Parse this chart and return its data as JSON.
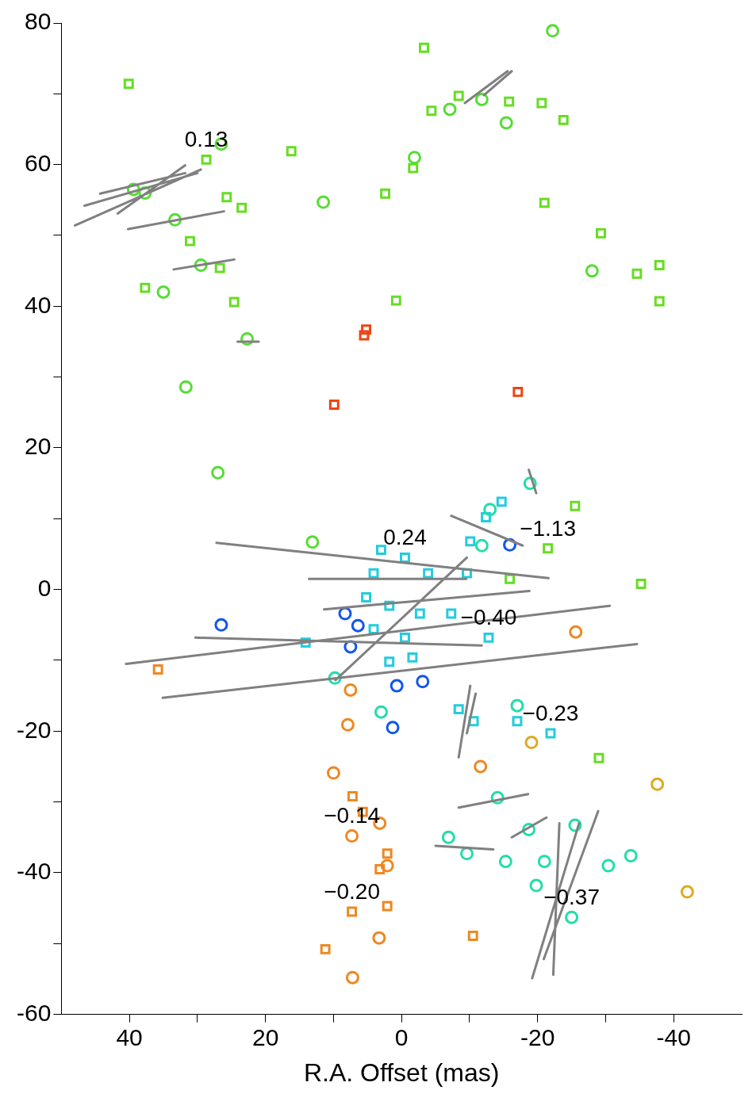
{
  "chart_data": {
    "type": "scatter",
    "xlabel": "R.A. Offset (mas)",
    "xlim": [
      50,
      -50
    ],
    "ylim": [
      -60,
      80
    ],
    "xticks": [
      40,
      {
        "value": 30,
        "label": null
      },
      20,
      {
        "value": 10,
        "label": null
      },
      0,
      {
        "value": -10,
        "label": null
      },
      -20,
      {
        "value": -30,
        "label": null
      },
      -40
    ],
    "yticks": [
      -60,
      {
        "value": -50,
        "label": null
      },
      -40,
      {
        "value": -30,
        "label": null
      },
      -20,
      {
        "value": -10,
        "label": null
      },
      0,
      {
        "value": 10,
        "label": null
      },
      20,
      {
        "value": 30,
        "label": null
      },
      40,
      {
        "value": 50,
        "label": null
      },
      60,
      {
        "value": 70,
        "label": null
      },
      80
    ],
    "grid": false,
    "legend": false,
    "series": [
      {
        "type": "line",
        "color": "#808080",
        "line_style": "solid",
        "marker": "none",
        "x": [
          48,
          29.5,
          null,
          46.6,
          30,
          null,
          44.3,
          31.8,
          null,
          41.7,
          31.8,
          null,
          40.2,
          26.1,
          null,
          33.5,
          24.6,
          null,
          -9.3,
          -15.6,
          null,
          -12.1,
          -16.2,
          null,
          27.2,
          -21.6,
          null,
          13.6,
          -9.5,
          null,
          40.5,
          -30.6,
          null,
          35.1,
          -34.6,
          null,
          30.3,
          -11.8,
          null,
          11.4,
          -18.8,
          null,
          9.7,
          -9.6,
          null,
          -7.3,
          -17.8,
          null,
          -8.4,
          -10.1,
          null,
          -9.6,
          -10.9,
          null,
          -8.4,
          -18.6,
          null,
          -5.0,
          -13.5,
          null,
          -19.2,
          -26.1,
          null,
          -22.3,
          -23.2,
          null,
          -20.9,
          -28.9,
          null,
          -16.2,
          -21.3,
          null,
          24.1,
          21.0,
          null,
          -18.7,
          -19.8
        ],
        "values": [
          51.4,
          59.3,
          null,
          54.2,
          58.8,
          null,
          55.9,
          58.8,
          null,
          53.1,
          59.9,
          null,
          50.9,
          53.4,
          null,
          45.2,
          46.6,
          null,
          68.7,
          73.2,
          null,
          69.8,
          73.2,
          null,
          6.6,
          1.6,
          null,
          1.5,
          1.5,
          null,
          -10.5,
          -2.3,
          null,
          -15.3,
          -7.7,
          null,
          -6.8,
          -7.9,
          null,
          -2.8,
          -0.2,
          null,
          -12.8,
          4.5,
          null,
          10.4,
          6.2,
          null,
          -23.7,
          -13.6,
          null,
          -20.3,
          -14.7,
          null,
          -30.8,
          -28.9,
          null,
          -36.2,
          -36.7,
          null,
          -54.9,
          -33.0,
          null,
          -54.4,
          -33.0,
          null,
          -52.2,
          -31.3,
          null,
          -35.0,
          -32.2,
          null,
          35.0,
          35.0,
          null,
          16.9,
          13.6
        ]
      },
      {
        "marker": "circle",
        "color": "#55dd33",
        "x": [
          -22.2,
          26.5,
          33.3,
          29.5,
          35,
          22.7,
          31.7,
          27,
          13.1,
          11.5,
          -7.1,
          -11.8,
          -15.4,
          -1.9,
          -28,
          39.4,
          37.7
        ],
        "values": [
          78.9,
          62.9,
          52.2,
          45.8,
          42,
          35.4,
          28.6,
          16.5,
          6.7,
          54.7,
          67.8,
          69.2,
          65.9,
          61,
          45,
          56.5,
          56
        ]
      },
      {
        "marker": "square",
        "color": "#66dd22",
        "x": [
          40.1,
          -3.3,
          16.2,
          28.7,
          25.7,
          23.5,
          31.1,
          26.7,
          24.6,
          37.7,
          2.4,
          -1.7,
          -4.4,
          -8.4,
          -15.8,
          -20.6,
          -23.8,
          -21,
          -29.3,
          -34.6,
          -37.9,
          -37.9,
          0.8,
          -25.5,
          -21.5,
          -35.2,
          -29,
          -15.9
        ],
        "values": [
          71.4,
          76.5,
          61.9,
          60.7,
          55.4,
          53.9,
          49.2,
          45.4,
          40.6,
          42.6,
          55.9,
          59.5,
          67.6,
          69.7,
          68.9,
          68.7,
          66.3,
          54.6,
          50.3,
          44.6,
          45.8,
          40.7,
          40.8,
          11.8,
          5.8,
          0.8,
          -23.8,
          1.5
        ]
      },
      {
        "marker": "circle",
        "color": "#22ddaa",
        "x": [
          -18.9,
          -13,
          -11.8,
          9.8,
          3,
          -17,
          -14.1,
          -6.9,
          -9.6,
          -18.7,
          -25.5,
          -21,
          -25,
          -30.4,
          -33.7,
          -19.8,
          -15.3
        ],
        "values": [
          15,
          11.3,
          6.2,
          -12.5,
          -17.3,
          -16.4,
          -29.4,
          -35,
          -37.3,
          -33.9,
          -33.3,
          -38.4,
          -46.3,
          -39,
          -37.6,
          -41.8,
          -38.4
        ]
      },
      {
        "marker": "square",
        "color": "#22ccdd",
        "x": [
          3,
          -0.5,
          4.1,
          -3.9,
          5.2,
          1.8,
          -2.7,
          4.1,
          -0.5,
          1.8,
          -1.6,
          -7.3,
          -9.6,
          -10.1,
          -12.4,
          -14.7,
          -8.4,
          -10.6,
          -12.8,
          -17,
          -21.9,
          14.1
        ],
        "values": [
          5.6,
          4.5,
          2.3,
          2.3,
          -1.1,
          -2.3,
          -3.4,
          -5.6,
          -6.8,
          -10.2,
          -9.6,
          -3.4,
          2.3,
          6.8,
          10.2,
          12.4,
          -16.9,
          -18.6,
          -6.8,
          -18.6,
          -20.3,
          -7.5
        ]
      },
      {
        "marker": "circle",
        "color": "#1155ee",
        "x": [
          26.5,
          0.7,
          -3.1,
          1.3,
          7.5,
          6.4,
          -15.9,
          8.3
        ],
        "values": [
          -5,
          -13.6,
          -13,
          -19.5,
          -8.1,
          -5.1,
          6.3,
          -3.4
        ]
      },
      {
        "marker": "circle",
        "color": "#ee8822",
        "x": [
          7.9,
          10,
          3.2,
          7.5,
          -11.6,
          -25.6,
          3.3,
          7.2,
          7.3,
          2.1
        ],
        "values": [
          -19.1,
          -25.9,
          -33,
          -14.2,
          -25,
          -6,
          -49.2,
          -54.8,
          -34.8,
          -39
        ]
      },
      {
        "marker": "square",
        "color": "#ee8822",
        "x": [
          7.2,
          5.7,
          2.1,
          3.2,
          7.3,
          2.1,
          11.2,
          -10.5,
          35.8
        ],
        "values": [
          -29.2,
          -31.4,
          -37.3,
          -39.5,
          -45.5,
          -44.7,
          -50.8,
          -48.9,
          -11.3
        ]
      },
      {
        "marker": "circle",
        "color": "#ddaa22",
        "x": [
          -19.1,
          -37.6,
          -42
        ],
        "values": [
          -21.6,
          -27.5,
          -42.7
        ]
      },
      {
        "marker": "square",
        "color": "#ee4411",
        "x": [
          5.2,
          5.5,
          9.9,
          -17.1
        ],
        "values": [
          36.7,
          35.9,
          26.1,
          27.9
        ]
      }
    ],
    "annotations": [
      {
        "text": "0.13",
        "x": 28.7,
        "y": 60.7
      },
      {
        "text": "0.24",
        "x": -0.5,
        "y": 4.5
      },
      {
        "text": "−1.13",
        "x": -21.5,
        "y": 5.8
      },
      {
        "text": "−0.40",
        "x": -12.8,
        "y": -6.8
      },
      {
        "text": "−0.23",
        "x": -21.9,
        "y": -20.3
      },
      {
        "text": "−0.14",
        "x": 7.3,
        "y": -34.8
      },
      {
        "text": "−0.20",
        "x": 7.3,
        "y": -45.5
      },
      {
        "text": "−0.37",
        "x": -25,
        "y": -46.3
      }
    ]
  }
}
